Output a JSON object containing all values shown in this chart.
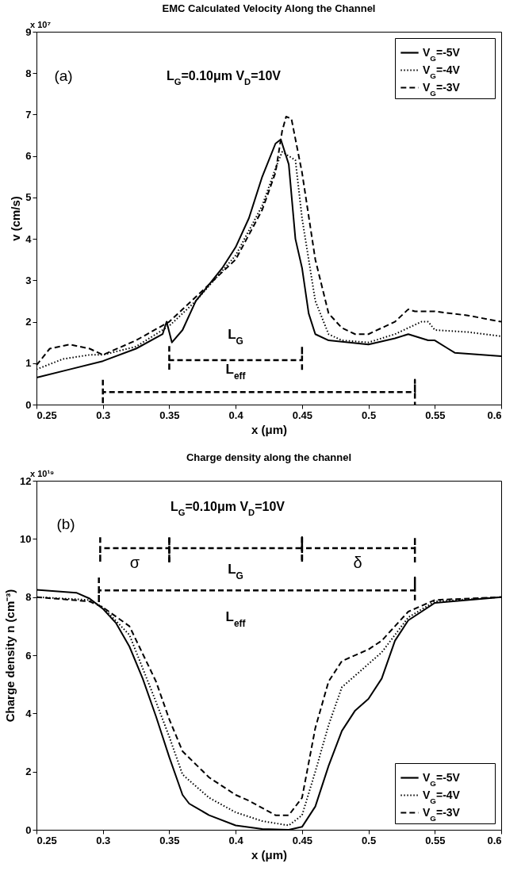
{
  "chart_data": [
    {
      "type": "line",
      "title": "EMC Calculated Velocity Along the Channel",
      "xlabel": "x (μm)",
      "ylabel": "v (cm/s)",
      "annotations": [
        "x 10⁷",
        "(a)",
        "L$_{G}$=0.10μm V$_{D}$=10V",
        "L$_{G}$",
        "L$_{eff}$"
      ],
      "xlim": [
        0.25,
        0.6
      ],
      "xticks": [
        0.25,
        0.3,
        0.35,
        0.4,
        0.45,
        0.5,
        0.55,
        0.6
      ],
      "ylim": [
        0,
        9
      ],
      "yticks": [
        0,
        1,
        2,
        3,
        4,
        5,
        6,
        7,
        8,
        9
      ],
      "legend": "top right",
      "grid": false,
      "series": [
        {
          "name": "V$_{G}$=-5V",
          "color": "#000000",
          "line_style": "solid",
          "x": [
            0.25,
            0.275,
            0.3,
            0.325,
            0.345,
            0.348,
            0.352,
            0.36,
            0.37,
            0.38,
            0.39,
            0.4,
            0.41,
            0.42,
            0.43,
            0.434,
            0.44,
            0.445,
            0.45,
            0.455,
            0.46,
            0.47,
            0.5,
            0.52,
            0.53,
            0.545,
            0.55,
            0.56,
            0.565,
            0.6
          ],
          "values": [
            0.65,
            0.85,
            1.05,
            1.35,
            1.7,
            2.0,
            1.5,
            1.8,
            2.5,
            2.9,
            3.3,
            3.8,
            4.5,
            5.5,
            6.3,
            6.4,
            5.8,
            4.0,
            3.3,
            2.2,
            1.7,
            1.55,
            1.45,
            1.6,
            1.7,
            1.55,
            1.55,
            1.35,
            1.25,
            1.17
          ]
        },
        {
          "name": "V$_{G}$=-4V",
          "color": "#000000",
          "line_style": "dotted",
          "x": [
            0.25,
            0.27,
            0.29,
            0.3,
            0.325,
            0.35,
            0.37,
            0.4,
            0.42,
            0.43,
            0.435,
            0.44,
            0.445,
            0.45,
            0.46,
            0.47,
            0.48,
            0.5,
            0.52,
            0.54,
            0.545,
            0.55,
            0.575,
            0.6
          ],
          "values": [
            0.85,
            1.1,
            1.2,
            1.2,
            1.4,
            1.9,
            2.5,
            3.6,
            4.8,
            5.7,
            6.1,
            6.0,
            5.9,
            4.5,
            2.5,
            1.7,
            1.55,
            1.5,
            1.7,
            2.0,
            2.0,
            1.8,
            1.75,
            1.65
          ]
        },
        {
          "name": "V$_{G}$=-3V",
          "color": "#000000",
          "line_style": "dashed",
          "x": [
            0.25,
            0.26,
            0.275,
            0.29,
            0.3,
            0.325,
            0.35,
            0.37,
            0.4,
            0.42,
            0.43,
            0.435,
            0.438,
            0.442,
            0.45,
            0.46,
            0.47,
            0.48,
            0.49,
            0.5,
            0.52,
            0.53,
            0.535,
            0.55,
            0.575,
            0.6
          ],
          "values": [
            0.95,
            1.35,
            1.45,
            1.35,
            1.2,
            1.55,
            2.0,
            2.6,
            3.5,
            4.7,
            5.6,
            6.6,
            6.95,
            6.9,
            5.6,
            3.5,
            2.2,
            1.85,
            1.7,
            1.7,
            2.0,
            2.3,
            2.25,
            2.25,
            2.15,
            2.0
          ]
        },
        {
          "color": "#000000",
          "line_style": "dashed",
          "x": [
            0.35,
            0.35,
            0.35,
            0.45,
            0.45,
            0.45
          ],
          "values": [
            1.41,
            0.81,
            1.07,
            1.07,
            1.41,
            0.81
          ]
        },
        {
          "color": "#000000",
          "line_style": "dashed",
          "x": [
            0.3,
            0.3,
            0.3,
            0.535,
            0.535,
            0.535
          ],
          "values": [
            0.6,
            0.0,
            0.3,
            0.3,
            0.6,
            0.0
          ]
        }
      ]
    },
    {
      "type": "line",
      "title": "Charge density along the channel",
      "xlabel": "x (μm)",
      "ylabel": "Charge density n (cm⁻³)",
      "annotations": [
        "x 10¹⁹",
        "(b)",
        "L$_{G}$=0.10μm V$_{D}$=10V",
        "σ",
        "L$_{G}$",
        "δ",
        "L$_{eff}$"
      ],
      "xlim": [
        0.25,
        0.6
      ],
      "xticks": [
        0.25,
        0.3,
        0.35,
        0.4,
        0.45,
        0.5,
        0.55,
        0.6
      ],
      "ylim": [
        0,
        12
      ],
      "yticks": [
        0,
        2,
        4,
        6,
        8,
        10,
        12
      ],
      "legend": "bottom right",
      "grid": false,
      "series": [
        {
          "name": "V$_{G}$=-5V",
          "color": "#000000",
          "line_style": "solid",
          "x": [
            0.25,
            0.28,
            0.29,
            0.3,
            0.31,
            0.32,
            0.33,
            0.34,
            0.35,
            0.36,
            0.365,
            0.38,
            0.4,
            0.42,
            0.44,
            0.45,
            0.46,
            0.47,
            0.48,
            0.49,
            0.5,
            0.51,
            0.52,
            0.53,
            0.55,
            0.6
          ],
          "values": [
            8.25,
            8.15,
            7.95,
            7.6,
            7.1,
            6.3,
            5.2,
            3.9,
            2.5,
            1.2,
            0.9,
            0.5,
            0.15,
            0.03,
            0.0,
            0.1,
            0.8,
            2.2,
            3.4,
            4.1,
            4.5,
            5.2,
            6.5,
            7.2,
            7.8,
            8.0
          ]
        },
        {
          "name": "V$_{G}$=-4V",
          "color": "#000000",
          "line_style": "dotted",
          "x": [
            0.25,
            0.29,
            0.3,
            0.32,
            0.34,
            0.35,
            0.36,
            0.38,
            0.4,
            0.42,
            0.44,
            0.45,
            0.46,
            0.47,
            0.48,
            0.5,
            0.51,
            0.52,
            0.53,
            0.55,
            0.6
          ],
          "values": [
            8.0,
            7.9,
            7.65,
            6.7,
            4.4,
            3.2,
            1.9,
            1.1,
            0.6,
            0.3,
            0.15,
            0.5,
            2.0,
            3.6,
            4.9,
            5.7,
            6.1,
            6.7,
            7.3,
            7.85,
            8.0
          ]
        },
        {
          "name": "V$_{G}$=-3V",
          "color": "#000000",
          "line_style": "dashed",
          "x": [
            0.25,
            0.29,
            0.3,
            0.32,
            0.34,
            0.35,
            0.36,
            0.38,
            0.4,
            0.41,
            0.43,
            0.44,
            0.45,
            0.46,
            0.47,
            0.48,
            0.5,
            0.51,
            0.52,
            0.53,
            0.55,
            0.6
          ],
          "values": [
            8.0,
            7.85,
            7.65,
            7.0,
            5.1,
            3.8,
            2.7,
            1.8,
            1.2,
            1.0,
            0.5,
            0.5,
            1.1,
            3.5,
            5.1,
            5.8,
            6.2,
            6.5,
            7.0,
            7.5,
            7.9,
            8.0
          ]
        },
        {
          "color": "#000000",
          "line_style": "dashed",
          "x": [
            0.298,
            0.298,
            0.298,
            0.35,
            0.35,
            0.35
          ],
          "values": [
            10.06,
            9.19,
            9.68,
            9.68,
            10.06,
            9.19
          ]
        },
        {
          "color": "#000000",
          "line_style": "dashed",
          "x": [
            0.35,
            0.35,
            0.35,
            0.45,
            0.45,
            0.45
          ],
          "values": [
            10.06,
            9.19,
            9.68,
            9.68,
            10.06,
            9.19
          ]
        },
        {
          "color": "#000000",
          "line_style": "dashed",
          "x": [
            0.45,
            0.45,
            0.45,
            0.535,
            0.535,
            0.535
          ],
          "values": [
            10.06,
            9.19,
            9.68,
            9.68,
            10.06,
            9.19
          ]
        },
        {
          "color": "#000000",
          "line_style": "dashed",
          "x": [
            0.297,
            0.297,
            0.297,
            0.535,
            0.535,
            0.535
          ],
          "values": [
            8.67,
            7.8,
            8.23,
            8.23,
            8.67,
            7.8
          ]
        }
      ]
    }
  ]
}
